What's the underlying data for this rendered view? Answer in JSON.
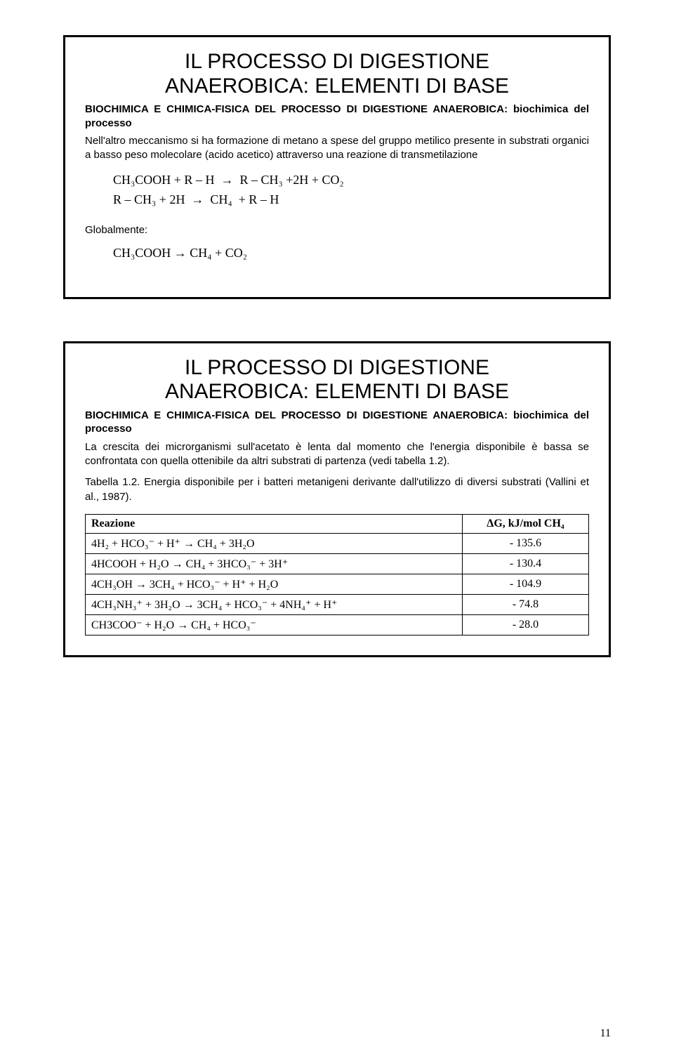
{
  "page_number": "11",
  "slide1": {
    "title_line1": "IL PROCESSO DI DIGESTIONE",
    "title_line2": "ANAEROBICA: ELEMENTI DI BASE",
    "subtitle": "BIOCHIMICA E CHIMICA-FISICA DEL PROCESSO DI DIGESTIONE ANAEROBICA: biochimica del processo",
    "para": "Nell'altro meccanismo si ha formazione di metano a spese del gruppo metilico presente in substrati organici a basso peso molecolare (acido acetico) attraverso una reazione di transmetilazione",
    "formula1": "CH₃COOH + R – H  →  R – CH₃ +2H + CO₂",
    "formula2": "R – CH₃ + 2H  →  CH₄  + R – H",
    "global_label": "Globalmente:",
    "formula3": "CH₃COOH → CH₄ + CO₂"
  },
  "slide2": {
    "title_line1": "IL PROCESSO DI DIGESTIONE",
    "title_line2": "ANAEROBICA: ELEMENTI DI BASE",
    "subtitle": "BIOCHIMICA E CHIMICA-FISICA DEL PROCESSO DI DIGESTIONE ANAEROBICA: biochimica del processo",
    "para1": "La crescita dei microrganismi sull'acetato è lenta dal momento che l'energia disponibile è bassa se confrontata con quella ottenibile da altri substrati di partenza (vedi tabella 1.2).",
    "para2": "Tabella 1.2. Energia disponibile per i batteri metanigeni derivante dall'utilizzo di diversi substrati (Vallini et al., 1987).",
    "table": {
      "header": {
        "col1": "Reazione",
        "col2": "ΔG, kJ/mol CH₄"
      },
      "rows": [
        {
          "reaction": "4H₂ + HCO₃⁻ + H⁺ → CH₄ + 3H₂O",
          "dg": "- 135.6"
        },
        {
          "reaction": "4HCOOH + H₂O → CH₄ + 3HCO₃⁻ + 3H⁺",
          "dg": "- 130.4"
        },
        {
          "reaction": "4CH₃OH → 3CH₄ + HCO₃⁻ + H⁺ + H₂O",
          "dg": "- 104.9"
        },
        {
          "reaction": "4CH₃NH₃⁺  +  3H₂O  →  3CH₄  +  HCO₃⁻  + 4NH₄⁺ + H⁺",
          "dg": "- 74.8"
        },
        {
          "reaction": "CH3COO⁻ + H₂O → CH₄ + HCO₃⁻",
          "dg": "- 28.0"
        }
      ]
    }
  }
}
